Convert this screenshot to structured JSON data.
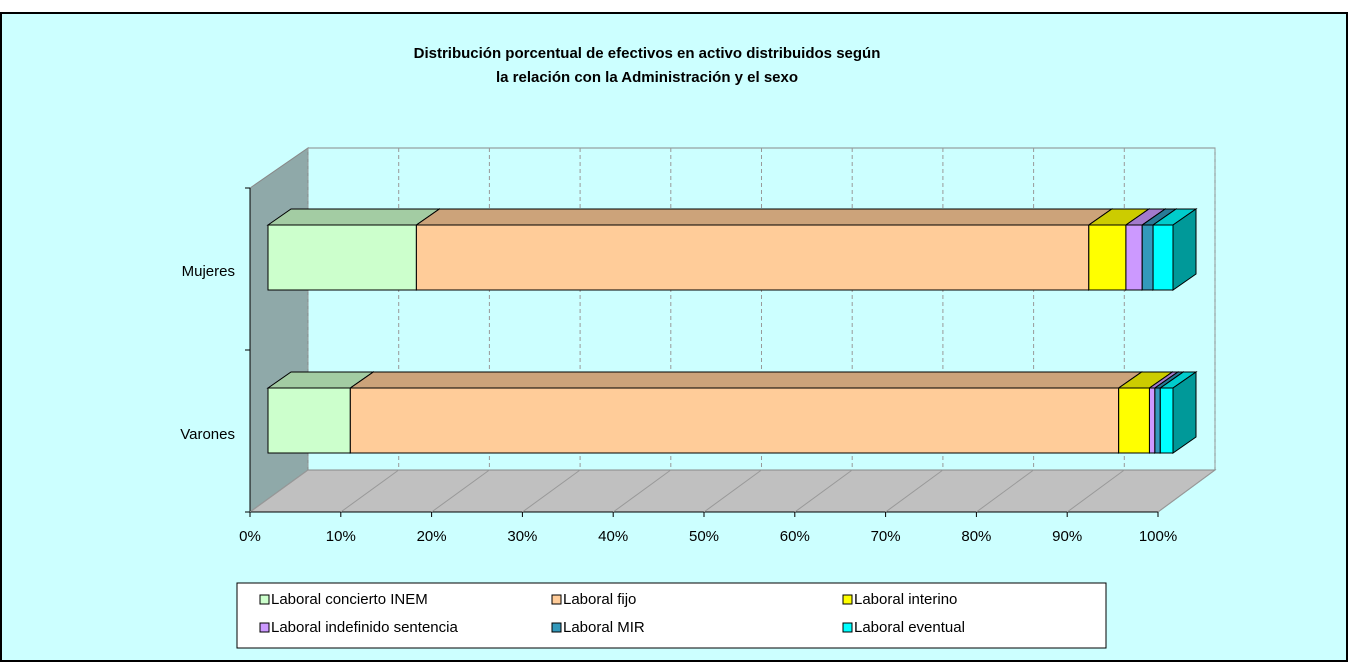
{
  "chart_data": {
    "type": "bar3d_stacked_horizontal",
    "title": [
      "Distribución porcentual de efectivos en activo distribuidos según",
      "la relación con la Administración y el sexo"
    ],
    "categories": [
      "Mujeres",
      "Varones"
    ],
    "series": [
      {
        "name": "Laboral concierto INEM",
        "color": "#ccffcc",
        "values": [
          16.4,
          9.1
        ]
      },
      {
        "name": "Laboral fijo",
        "color": "#ffcc99",
        "values": [
          74.3,
          84.9
        ]
      },
      {
        "name": "Laboral interino",
        "color": "#ffff00",
        "values": [
          4.1,
          3.4
        ]
      },
      {
        "name": "Laboral indefinido sentencia",
        "color": "#cc99ff",
        "values": [
          1.8,
          0.6
        ]
      },
      {
        "name": "Laboral MIR",
        "color": "#3399bb",
        "values": [
          1.2,
          0.6
        ]
      },
      {
        "name": "Laboral eventual",
        "color": "#00ffff",
        "values": [
          2.2,
          1.4
        ]
      }
    ],
    "xlim": [
      0,
      100
    ],
    "xticks": [
      {
        "value": 0,
        "label": "0%"
      },
      {
        "value": 10,
        "label": "10%"
      },
      {
        "value": 20,
        "label": "20%"
      },
      {
        "value": 30,
        "label": "30%"
      },
      {
        "value": 40,
        "label": "40%"
      },
      {
        "value": 50,
        "label": "50%"
      },
      {
        "value": 60,
        "label": "60%"
      },
      {
        "value": 70,
        "label": "70%"
      },
      {
        "value": 80,
        "label": "80%"
      },
      {
        "value": 90,
        "label": "90%"
      },
      {
        "value": 100,
        "label": "100%"
      }
    ],
    "grid": true,
    "legend": "bottom"
  }
}
